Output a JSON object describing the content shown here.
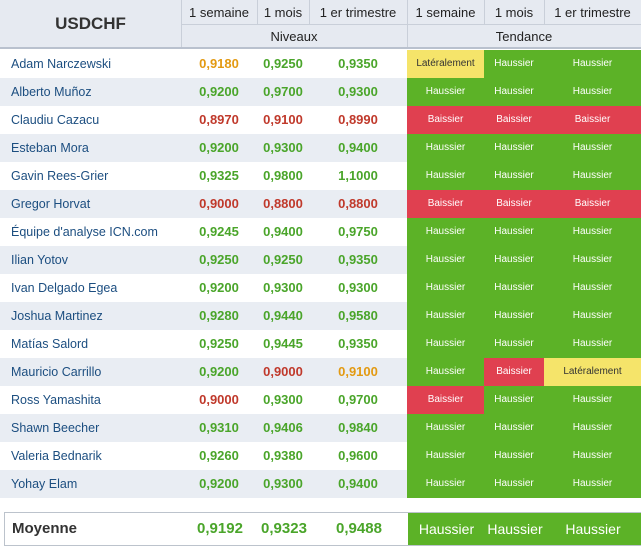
{
  "header": {
    "pair": "USDCHF",
    "period_labels": [
      "1 semaine",
      "1 mois",
      "1 er trimestre"
    ],
    "levels_label": "Niveaux",
    "trend_label": "Tendance"
  },
  "colors": {
    "green": "#4aa52a",
    "red": "#c0392b",
    "orange": "#e39a12",
    "trend_up": "#5cb227",
    "trend_down": "#e04050",
    "trend_sideways": "#f5e46a"
  },
  "rows": [
    {
      "name": "Adam Narczewski",
      "levels": [
        "0,9180",
        "0,9250",
        "0,9350"
      ],
      "level_colors": [
        "orange",
        "green",
        "green"
      ],
      "trends": [
        "Latéralement",
        "Haussier",
        "Haussier"
      ]
    },
    {
      "name": "Alberto Muñoz",
      "levels": [
        "0,9200",
        "0,9700",
        "0,9300"
      ],
      "level_colors": [
        "green",
        "green",
        "green"
      ],
      "trends": [
        "Haussier",
        "Haussier",
        "Haussier"
      ]
    },
    {
      "name": "Claudiu Cazacu",
      "levels": [
        "0,8970",
        "0,9100",
        "0,8990"
      ],
      "level_colors": [
        "red",
        "red",
        "red"
      ],
      "trends": [
        "Baissier",
        "Baissier",
        "Baissier"
      ]
    },
    {
      "name": "Esteban Mora",
      "levels": [
        "0,9200",
        "0,9300",
        "0,9400"
      ],
      "level_colors": [
        "green",
        "green",
        "green"
      ],
      "trends": [
        "Haussier",
        "Haussier",
        "Haussier"
      ]
    },
    {
      "name": "Gavin Rees-Grier",
      "levels": [
        "0,9325",
        "0,9800",
        "1,1000"
      ],
      "level_colors": [
        "green",
        "green",
        "green"
      ],
      "trends": [
        "Haussier",
        "Haussier",
        "Haussier"
      ]
    },
    {
      "name": "Gregor Horvat",
      "levels": [
        "0,9000",
        "0,8800",
        "0,8800"
      ],
      "level_colors": [
        "red",
        "red",
        "red"
      ],
      "trends": [
        "Baissier",
        "Baissier",
        "Baissier"
      ]
    },
    {
      "name": "Équipe d'analyse ICN.com",
      "levels": [
        "0,9245",
        "0,9400",
        "0,9750"
      ],
      "level_colors": [
        "green",
        "green",
        "green"
      ],
      "trends": [
        "Haussier",
        "Haussier",
        "Haussier"
      ]
    },
    {
      "name": "Ilian Yotov",
      "levels": [
        "0,9250",
        "0,9250",
        "0,9350"
      ],
      "level_colors": [
        "green",
        "green",
        "green"
      ],
      "trends": [
        "Haussier",
        "Haussier",
        "Haussier"
      ]
    },
    {
      "name": "Ivan Delgado Egea",
      "levels": [
        "0,9200",
        "0,9300",
        "0,9300"
      ],
      "level_colors": [
        "green",
        "green",
        "green"
      ],
      "trends": [
        "Haussier",
        "Haussier",
        "Haussier"
      ]
    },
    {
      "name": "Joshua Martinez",
      "levels": [
        "0,9280",
        "0,9440",
        "0,9580"
      ],
      "level_colors": [
        "green",
        "green",
        "green"
      ],
      "trends": [
        "Haussier",
        "Haussier",
        "Haussier"
      ]
    },
    {
      "name": "Matías Salord",
      "levels": [
        "0,9250",
        "0,9445",
        "0,9350"
      ],
      "level_colors": [
        "green",
        "green",
        "green"
      ],
      "trends": [
        "Haussier",
        "Haussier",
        "Haussier"
      ]
    },
    {
      "name": "Mauricio Carrillo",
      "levels": [
        "0,9200",
        "0,9000",
        "0,9100"
      ],
      "level_colors": [
        "green",
        "red",
        "orange"
      ],
      "trends": [
        "Haussier",
        "Baissier",
        "Latéralement"
      ]
    },
    {
      "name": "Ross Yamashita",
      "levels": [
        "0,9000",
        "0,9300",
        "0,9700"
      ],
      "level_colors": [
        "red",
        "green",
        "green"
      ],
      "trends": [
        "Baissier",
        "Haussier",
        "Haussier"
      ]
    },
    {
      "name": "Shawn Beecher",
      "levels": [
        "0,9310",
        "0,9406",
        "0,9840"
      ],
      "level_colors": [
        "green",
        "green",
        "green"
      ],
      "trends": [
        "Haussier",
        "Haussier",
        "Haussier"
      ]
    },
    {
      "name": "Valeria Bednarik",
      "levels": [
        "0,9260",
        "0,9380",
        "0,9600"
      ],
      "level_colors": [
        "green",
        "green",
        "green"
      ],
      "trends": [
        "Haussier",
        "Haussier",
        "Haussier"
      ]
    },
    {
      "name": "Yohay Elam",
      "levels": [
        "0,9200",
        "0,9300",
        "0,9400"
      ],
      "level_colors": [
        "green",
        "green",
        "green"
      ],
      "trends": [
        "Haussier",
        "Haussier",
        "Haussier"
      ]
    }
  ],
  "average": {
    "label": "Moyenne",
    "levels": [
      "0,9192",
      "0,9323",
      "0,9488"
    ],
    "trends": [
      "Haussier",
      "Haussier",
      "Haussier"
    ]
  }
}
